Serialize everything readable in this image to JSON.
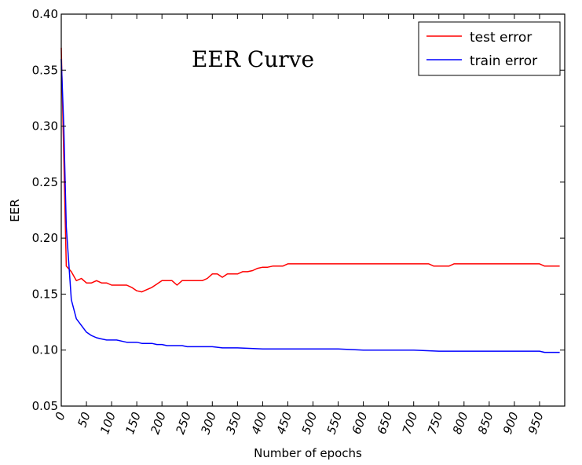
{
  "chart_data": {
    "type": "line",
    "title": "EER Curve",
    "xlabel": "Number of epochs",
    "ylabel": "EER",
    "xlim": [
      0,
      1000
    ],
    "ylim": [
      0.05,
      0.4
    ],
    "x_ticks": [
      0,
      50,
      100,
      150,
      200,
      250,
      300,
      350,
      400,
      450,
      500,
      550,
      600,
      650,
      700,
      750,
      800,
      850,
      900,
      950
    ],
    "x_tick_labels": [
      "0",
      "50",
      "100",
      "150",
      "200",
      "250",
      "300",
      "350",
      "400",
      "450",
      "500",
      "550",
      "600",
      "650",
      "700",
      "750",
      "800",
      "850",
      "900",
      "950"
    ],
    "y_ticks": [
      0.05,
      0.1,
      0.15,
      0.2,
      0.25,
      0.3,
      0.35,
      0.4
    ],
    "y_tick_labels": [
      "0.05",
      "0.10",
      "0.15",
      "0.20",
      "0.25",
      "0.30",
      "0.35",
      "0.40"
    ],
    "grid": false,
    "legend_position": "top-right",
    "series": [
      {
        "name": "test error",
        "color": "#ff0000",
        "x": [
          0,
          10,
          20,
          30,
          40,
          50,
          60,
          70,
          80,
          90,
          100,
          110,
          120,
          130,
          140,
          150,
          160,
          170,
          180,
          190,
          200,
          210,
          220,
          230,
          240,
          250,
          260,
          270,
          280,
          290,
          300,
          310,
          320,
          330,
          340,
          350,
          360,
          370,
          380,
          390,
          400,
          410,
          420,
          430,
          440,
          450,
          460,
          480,
          500,
          550,
          600,
          650,
          700,
          720,
          730,
          740,
          750,
          760,
          770,
          780,
          790,
          800,
          850,
          900,
          950,
          960,
          970,
          980,
          990
        ],
        "y": [
          0.37,
          0.175,
          0.17,
          0.162,
          0.164,
          0.16,
          0.16,
          0.162,
          0.16,
          0.16,
          0.158,
          0.158,
          0.158,
          0.158,
          0.156,
          0.153,
          0.152,
          0.154,
          0.156,
          0.159,
          0.162,
          0.162,
          0.162,
          0.158,
          0.162,
          0.162,
          0.162,
          0.162,
          0.162,
          0.164,
          0.168,
          0.168,
          0.165,
          0.168,
          0.168,
          0.168,
          0.17,
          0.17,
          0.171,
          0.173,
          0.174,
          0.174,
          0.175,
          0.175,
          0.175,
          0.177,
          0.177,
          0.177,
          0.177,
          0.177,
          0.177,
          0.177,
          0.177,
          0.177,
          0.177,
          0.175,
          0.175,
          0.175,
          0.175,
          0.177,
          0.177,
          0.177,
          0.177,
          0.177,
          0.177,
          0.175,
          0.175,
          0.175,
          0.175
        ]
      },
      {
        "name": "train error",
        "color": "#0000ff",
        "x": [
          0,
          5,
          10,
          20,
          30,
          40,
          50,
          60,
          70,
          80,
          90,
          100,
          110,
          120,
          130,
          140,
          150,
          160,
          170,
          180,
          190,
          200,
          210,
          220,
          230,
          240,
          250,
          260,
          270,
          280,
          300,
          320,
          350,
          400,
          450,
          500,
          550,
          600,
          650,
          700,
          750,
          800,
          850,
          880,
          900,
          950,
          960,
          970,
          990
        ],
        "y": [
          0.36,
          0.3,
          0.21,
          0.145,
          0.128,
          0.122,
          0.116,
          0.113,
          0.111,
          0.11,
          0.109,
          0.109,
          0.109,
          0.108,
          0.107,
          0.107,
          0.107,
          0.106,
          0.106,
          0.106,
          0.105,
          0.105,
          0.104,
          0.104,
          0.104,
          0.104,
          0.103,
          0.103,
          0.103,
          0.103,
          0.103,
          0.102,
          0.102,
          0.101,
          0.101,
          0.101,
          0.101,
          0.1,
          0.1,
          0.1,
          0.099,
          0.099,
          0.099,
          0.099,
          0.099,
          0.099,
          0.098,
          0.098,
          0.098
        ]
      }
    ]
  }
}
